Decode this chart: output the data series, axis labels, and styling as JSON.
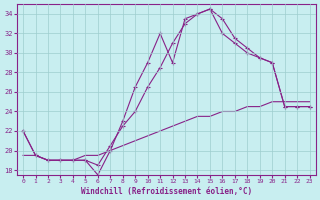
{
  "xlabel": "Windchill (Refroidissement éolien,°C)",
  "bg_color": "#c8eef0",
  "grid_color": "#9ecece",
  "line_color": "#882288",
  "xlim": [
    -0.5,
    23.5
  ],
  "ylim": [
    17.5,
    35.0
  ],
  "xticks": [
    0,
    1,
    2,
    3,
    4,
    5,
    6,
    7,
    8,
    9,
    10,
    11,
    12,
    13,
    14,
    15,
    16,
    17,
    18,
    19,
    20,
    21,
    22,
    23
  ],
  "yticks": [
    18,
    20,
    22,
    24,
    26,
    28,
    30,
    32,
    34
  ],
  "line1_x": [
    0,
    1,
    2,
    3,
    4,
    5,
    6,
    7,
    8,
    9,
    10,
    11,
    12,
    13,
    14,
    15,
    16,
    17,
    18,
    19,
    20,
    21,
    22,
    23
  ],
  "line1_y": [
    22,
    19.5,
    19.0,
    19.0,
    19.0,
    19.0,
    17.5,
    20.0,
    23.0,
    26.5,
    29.0,
    32.0,
    29.0,
    33.5,
    34.0,
    34.5,
    32.0,
    31.0,
    30.0,
    29.5,
    29.0,
    24.5,
    24.5,
    24.5
  ],
  "line2_x": [
    0,
    1,
    2,
    3,
    4,
    5,
    6,
    7,
    8,
    9,
    10,
    11,
    12,
    13,
    14,
    15,
    16,
    17,
    18,
    19,
    20,
    21,
    22,
    23
  ],
  "line2_y": [
    22,
    19.5,
    19.0,
    19.0,
    19.0,
    19.0,
    18.5,
    20.5,
    22.5,
    24.0,
    26.5,
    28.5,
    31.0,
    33.0,
    34.0,
    34.5,
    33.5,
    31.5,
    30.5,
    29.5,
    29.0,
    24.5,
    24.5,
    24.5
  ],
  "line3_x": [
    0,
    1,
    2,
    3,
    4,
    5,
    6,
    7,
    8,
    9,
    10,
    11,
    12,
    13,
    14,
    15,
    16,
    17,
    18,
    19,
    20,
    21,
    22,
    23
  ],
  "line3_y": [
    19.5,
    19.5,
    19.0,
    19.0,
    19.0,
    19.5,
    19.5,
    20.0,
    20.5,
    21.0,
    21.5,
    22.0,
    22.5,
    23.0,
    23.5,
    23.5,
    24.0,
    24.0,
    24.5,
    24.5,
    25.0,
    25.0,
    25.0,
    25.0
  ]
}
